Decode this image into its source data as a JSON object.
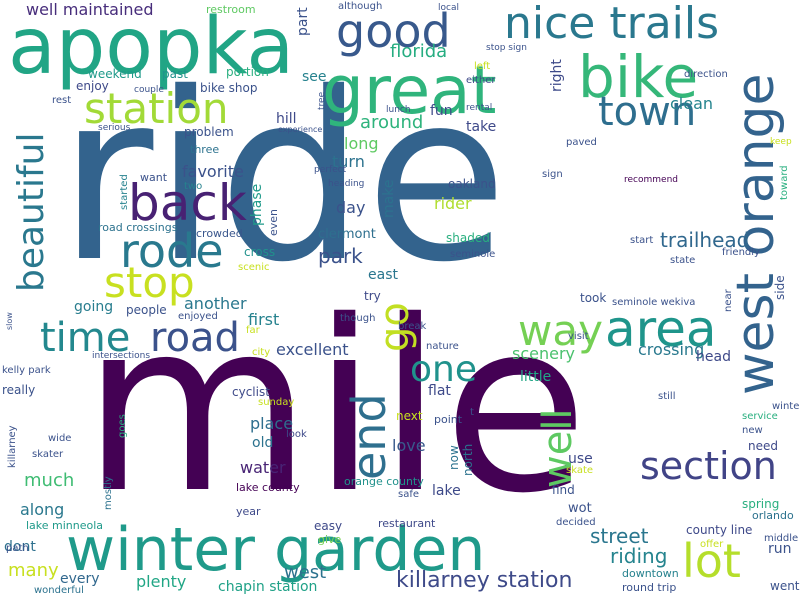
{
  "words": [
    {
      "text": "ride",
      "color": "#33638d"
    },
    {
      "text": "mile",
      "color": "#440154"
    },
    {
      "text": "apopka",
      "color": "#21a585"
    },
    {
      "text": "winter garden",
      "color": "#1f9a8a"
    },
    {
      "text": "great",
      "color": "#2fb47c"
    },
    {
      "text": "bike",
      "color": "#35b779"
    },
    {
      "text": "west orange",
      "color": "#33638d"
    },
    {
      "text": "nice trails",
      "color": "#2a788e"
    },
    {
      "text": "good",
      "color": "#38598c"
    },
    {
      "text": "station",
      "color": "#a2da37"
    },
    {
      "text": "town",
      "color": "#2e6e8e"
    },
    {
      "text": "back",
      "color": "#482173"
    },
    {
      "text": "rode",
      "color": "#29798e"
    },
    {
      "text": "stop",
      "color": "#c8e020"
    },
    {
      "text": "beautiful",
      "color": "#2a788e"
    },
    {
      "text": "time",
      "color": "#23888e"
    },
    {
      "text": "road",
      "color": "#3b528b"
    },
    {
      "text": "go",
      "color": "#c2df23"
    },
    {
      "text": "way",
      "color": "#75d054"
    },
    {
      "text": "area",
      "color": "#1f958b"
    },
    {
      "text": "end",
      "color": "#2e6f8e"
    },
    {
      "text": "one",
      "color": "#20928c"
    },
    {
      "text": "well",
      "color": "#5ec962"
    },
    {
      "text": "section",
      "color": "#414487"
    },
    {
      "text": "lot",
      "color": "#b5de2b"
    },
    {
      "text": "killarney station",
      "color": "#3e4a89"
    },
    {
      "text": "well maintained",
      "color": "#472d7b"
    },
    {
      "text": "florida",
      "color": "#26ad81"
    },
    {
      "text": "around",
      "color": "#2eb37c"
    },
    {
      "text": "trailhead",
      "color": "#31688e"
    },
    {
      "text": "park",
      "color": "#3b528b"
    },
    {
      "text": "street",
      "color": "#2a768e"
    },
    {
      "text": "riding",
      "color": "#25848e"
    },
    {
      "text": "west",
      "color": "#2c728e"
    },
    {
      "text": "plenty",
      "color": "#21a685"
    },
    {
      "text": "many",
      "color": "#c8e020"
    },
    {
      "text": "much",
      "color": "#3fbc73"
    },
    {
      "text": "along",
      "color": "#2a788e"
    },
    {
      "text": "every",
      "color": "#31688e"
    },
    {
      "text": "dont",
      "color": "#2d708e"
    },
    {
      "text": "excellent",
      "color": "#3b528b"
    },
    {
      "text": "first",
      "color": "#26828e"
    },
    {
      "text": "another",
      "color": "#2a788e"
    },
    {
      "text": "favorite",
      "color": "#3b528b"
    },
    {
      "text": "place",
      "color": "#2e6e8e"
    },
    {
      "text": "water",
      "color": "#482475"
    },
    {
      "text": "scenery",
      "color": "#4ac16d"
    },
    {
      "text": "crossing",
      "color": "#29798e"
    },
    {
      "text": "little",
      "color": "#21a685"
    },
    {
      "text": "love",
      "color": "#38598c"
    },
    {
      "text": "lake",
      "color": "#3e4a89"
    },
    {
      "text": "chapin station",
      "color": "#1fa187"
    },
    {
      "text": "long",
      "color": "#5ec962"
    },
    {
      "text": "turn",
      "color": "#2c728e"
    },
    {
      "text": "day",
      "color": "#3b528b"
    },
    {
      "text": "rider",
      "color": "#b0dd2f"
    },
    {
      "text": "make",
      "color": "#2c728e"
    },
    {
      "text": "clean",
      "color": "#25848e"
    },
    {
      "text": "take",
      "color": "#3e4989"
    },
    {
      "text": "fun",
      "color": "#3e4a89"
    },
    {
      "text": "hill",
      "color": "#3e4989"
    },
    {
      "text": "see",
      "color": "#26828e"
    },
    {
      "text": "right",
      "color": "#3e4a89"
    },
    {
      "text": "part",
      "color": "#3b528b"
    },
    {
      "text": "weekend",
      "color": "#1f9a8a"
    },
    {
      "text": "past",
      "color": "#20928c"
    },
    {
      "text": "bike shop",
      "color": "#3b528b"
    },
    {
      "text": "portion",
      "color": "#29af7f"
    },
    {
      "text": "problem",
      "color": "#3b528b"
    },
    {
      "text": "three",
      "color": "#2c728e"
    },
    {
      "text": "want",
      "color": "#3b528b"
    },
    {
      "text": "started",
      "color": "#26828e"
    },
    {
      "text": "two",
      "color": "#26828e"
    },
    {
      "text": "road crossings",
      "color": "#2c728e"
    },
    {
      "text": "crowded",
      "color": "#39568c"
    },
    {
      "text": "phase",
      "color": "#1f9a8a"
    },
    {
      "text": "even",
      "color": "#3b528b"
    },
    {
      "text": "cross",
      "color": "#21918c"
    },
    {
      "text": "scenic",
      "color": "#c8e020"
    },
    {
      "text": "clermont",
      "color": "#2e6f8e"
    },
    {
      "text": "shaded",
      "color": "#29af7f"
    },
    {
      "text": "oakland",
      "color": "#3b528b"
    },
    {
      "text": "seminole",
      "color": "#3b528b"
    },
    {
      "text": "east",
      "color": "#2a768e"
    },
    {
      "text": "try",
      "color": "#3e4a89"
    },
    {
      "text": "going",
      "color": "#287d8e"
    },
    {
      "text": "people",
      "color": "#3b528b"
    },
    {
      "text": "enjoyed",
      "color": "#3b528b"
    },
    {
      "text": "took",
      "color": "#3b528b"
    },
    {
      "text": "seminole wekiva",
      "color": "#3b528b"
    },
    {
      "text": "head",
      "color": "#3e4989"
    },
    {
      "text": "nature",
      "color": "#3b528b"
    },
    {
      "text": "flat",
      "color": "#3e4a89"
    },
    {
      "text": "cyclist",
      "color": "#3e4a89"
    },
    {
      "text": "old",
      "color": "#2c728e"
    },
    {
      "text": "look",
      "color": "#3e4a89"
    },
    {
      "text": "next",
      "color": "#c8e020"
    },
    {
      "text": "point",
      "color": "#3b528b"
    },
    {
      "text": "now",
      "color": "#2c728e"
    },
    {
      "text": "north",
      "color": "#2c728e"
    },
    {
      "text": "use",
      "color": "#3e4989"
    },
    {
      "text": "skate",
      "color": "#c8e020"
    },
    {
      "text": "find",
      "color": "#3b528b"
    },
    {
      "text": "wot",
      "color": "#3b528b"
    },
    {
      "text": "lake county",
      "color": "#440154"
    },
    {
      "text": "orange county",
      "color": "#21918c"
    },
    {
      "text": "safe",
      "color": "#3b528b"
    },
    {
      "text": "easy",
      "color": "#3e4989"
    },
    {
      "text": "give",
      "color": "#75d054"
    },
    {
      "text": "restaurant",
      "color": "#3e4989"
    },
    {
      "text": "decided",
      "color": "#3b528b"
    },
    {
      "text": "county line",
      "color": "#3e4989"
    },
    {
      "text": "run",
      "color": "#3b528b"
    },
    {
      "text": "offer",
      "color": "#c8e020"
    },
    {
      "text": "middle",
      "color": "#3b528b"
    },
    {
      "text": "went",
      "color": "#3b528b"
    },
    {
      "text": "orlando",
      "color": "#2c728e"
    },
    {
      "text": "spring",
      "color": "#29af7f"
    },
    {
      "text": "downtown",
      "color": "#26828e"
    },
    {
      "text": "round trip",
      "color": "#3b528b"
    },
    {
      "text": "lake minneola",
      "color": "#1f9a8a"
    },
    {
      "text": "year",
      "color": "#3e4989"
    },
    {
      "text": "mostly",
      "color": "#2c728e"
    },
    {
      "text": "goes",
      "color": "#29af7f"
    },
    {
      "text": "wonderful",
      "color": "#2c728e"
    },
    {
      "text": "path",
      "color": "#3b528b"
    },
    {
      "text": "skater",
      "color": "#3b528b"
    },
    {
      "text": "wide",
      "color": "#3b528b"
    },
    {
      "text": "killarney",
      "color": "#3b528b"
    },
    {
      "text": "really",
      "color": "#3b528b"
    },
    {
      "text": "kelly park",
      "color": "#3b528b"
    },
    {
      "text": "intersections",
      "color": "#3b528b"
    },
    {
      "text": "city",
      "color": "#c8e020"
    },
    {
      "text": "far",
      "color": "#c8e020"
    },
    {
      "text": "though",
      "color": "#3b528b"
    },
    {
      "text": "break",
      "color": "#3b528b"
    },
    {
      "text": "visit",
      "color": "#3b528b"
    },
    {
      "text": "sunday",
      "color": "#c8e020"
    },
    {
      "text": "still",
      "color": "#3b528b"
    },
    {
      "text": "winter",
      "color": "#3b528b"
    },
    {
      "text": "service",
      "color": "#29af7f"
    },
    {
      "text": "new",
      "color": "#3b528b"
    },
    {
      "text": "need",
      "color": "#3e4989"
    },
    {
      "text": "near",
      "color": "#3b528b"
    },
    {
      "text": "side",
      "color": "#3b528b"
    },
    {
      "text": "friendly",
      "color": "#3b528b"
    },
    {
      "text": "state",
      "color": "#3b528b"
    },
    {
      "text": "start",
      "color": "#3b528b"
    },
    {
      "text": "recommend",
      "color": "#440154"
    },
    {
      "text": "toward",
      "color": "#29af7f"
    },
    {
      "text": "keep",
      "color": "#c8e020"
    },
    {
      "text": "paved",
      "color": "#3b528b"
    },
    {
      "text": "sign",
      "color": "#3b528b"
    },
    {
      "text": "heading",
      "color": "#3b528b"
    },
    {
      "text": "perfect",
      "color": "#3b528b"
    },
    {
      "text": "tree",
      "color": "#3b528b"
    },
    {
      "text": "lunch",
      "color": "#3b528b"
    },
    {
      "text": "rental",
      "color": "#3b528b"
    },
    {
      "text": "experience",
      "color": "#3b528b"
    },
    {
      "text": "serious",
      "color": "#3b528b"
    },
    {
      "text": "rest",
      "color": "#3b528b"
    },
    {
      "text": "enjoy",
      "color": "#3e4989"
    },
    {
      "text": "couple",
      "color": "#3b528b"
    },
    {
      "text": "restroom",
      "color": "#5ec962"
    },
    {
      "text": "although",
      "color": "#3b528b"
    },
    {
      "text": "either",
      "color": "#3e4989"
    },
    {
      "text": "local",
      "color": "#3b528b"
    },
    {
      "text": "left",
      "color": "#c8e020"
    },
    {
      "text": "stop sign",
      "color": "#3b528b"
    },
    {
      "text": "direction",
      "color": "#3b528b"
    },
    {
      "text": "slow",
      "color": "#3b528b"
    },
    {
      "text": "t",
      "color": "#3b528b"
    }
  ]
}
